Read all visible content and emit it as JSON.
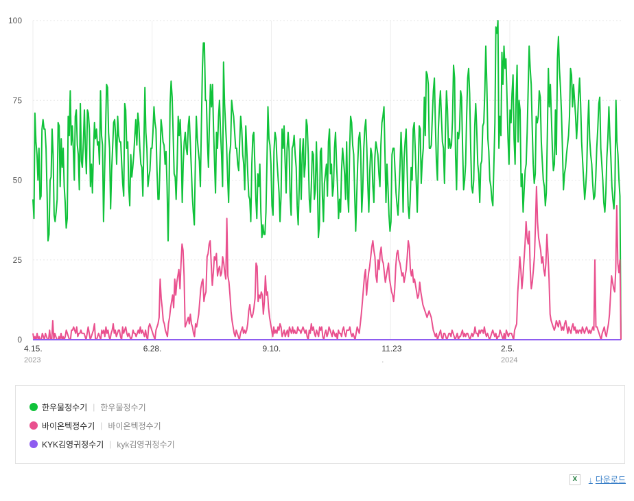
{
  "chart_data": {
    "type": "line",
    "ylim": [
      0,
      100
    ],
    "y_ticks": [
      0,
      25,
      50,
      75,
      100
    ],
    "grid": true,
    "x_ticks": [
      {
        "date": "2023-04-15",
        "label": "4.15.",
        "sub": "2023"
      },
      {
        "date": "2023-06-28",
        "label": "6.28.",
        "sub": ""
      },
      {
        "date": "2023-09-10",
        "label": "9.10.",
        "sub": ""
      },
      {
        "date": "2023-11-23",
        "label": "11.23",
        "sub": "."
      },
      {
        "date": "2024-02-05",
        "label": "2.5.",
        "sub": "2024"
      }
    ],
    "x_start": "2023-04-15",
    "x_end": "2024-04-14",
    "series": [
      {
        "name": "한우물정수기",
        "color": "#10c23a",
        "values": [
          44,
          38,
          71,
          62,
          58,
          50,
          60,
          44,
          45,
          66,
          69,
          66,
          66,
          60,
          46,
          31,
          33,
          50,
          51,
          66,
          58,
          39,
          37,
          40,
          44,
          68,
          67,
          48,
          63,
          54,
          60,
          48,
          43,
          35,
          38,
          70,
          64,
          78,
          61,
          67,
          60,
          50,
          70,
          72,
          61,
          58,
          47,
          74,
          56,
          54,
          62,
          72,
          60,
          52,
          72,
          71,
          66,
          48,
          55,
          46,
          59,
          68,
          63,
          66,
          61,
          62,
          55,
          78,
          64,
          61,
          37,
          52,
          65,
          80,
          79,
          65,
          60,
          41,
          53,
          60,
          68,
          69,
          64,
          55,
          70,
          64,
          62,
          62,
          55,
          49,
          45,
          74,
          72,
          60,
          62,
          48,
          42,
          58,
          51,
          54,
          58,
          64,
          69,
          61,
          71,
          68,
          60,
          55,
          54,
          45,
          61,
          79,
          65,
          60,
          48,
          51,
          53,
          60,
          60,
          65,
          73,
          68,
          66,
          53,
          44,
          44,
          55,
          69,
          66,
          62,
          61,
          55,
          59,
          48,
          31,
          47,
          74,
          81,
          76,
          65,
          52,
          51,
          44,
          55,
          70,
          64,
          69,
          60,
          43,
          55,
          62,
          65,
          60,
          58,
          67,
          70,
          62,
          54,
          45,
          40,
          36,
          55,
          70,
          63,
          59,
          56,
          48,
          67,
          85,
          93,
          93,
          75,
          75,
          62,
          54,
          68,
          80,
          73,
          80,
          67,
          56,
          46,
          65,
          60,
          70,
          75,
          65,
          58,
          48,
          87,
          74,
          67,
          61,
          51,
          43,
          58,
          61,
          75,
          72,
          70,
          65,
          60,
          60,
          55,
          53,
          62,
          70,
          66,
          58,
          55,
          47,
          67,
          60,
          52,
          45,
          44,
          37,
          55,
          64,
          65,
          55,
          44,
          38,
          52,
          48,
          55,
          40,
          32,
          36,
          33,
          33,
          40,
          55,
          73,
          63,
          61,
          55,
          42,
          39,
          59,
          65,
          63,
          56,
          51,
          46,
          37,
          45,
          66,
          60,
          67,
          56,
          46,
          60,
          65,
          59,
          45,
          39,
          60,
          61,
          64,
          58,
          54,
          42,
          36,
          48,
          63,
          44,
          58,
          63,
          51,
          55,
          69,
          67,
          58,
          44,
          40,
          48,
          59,
          58,
          44,
          47,
          62,
          51,
          32,
          36,
          59,
          60,
          45,
          37,
          49,
          52,
          55,
          45,
          62,
          66,
          52,
          55,
          45,
          48,
          60,
          65,
          55,
          48,
          38,
          44,
          40,
          53,
          60,
          56,
          52,
          44,
          62,
          46,
          40,
          60,
          70,
          68,
          61,
          58,
          46,
          34,
          45,
          55,
          63,
          65,
          59,
          40,
          47,
          60,
          66,
          69,
          60,
          49,
          40,
          53,
          60,
          58,
          48,
          43,
          57,
          62,
          60,
          58,
          52,
          48,
          61,
          68,
          70,
          73,
          59,
          43,
          55,
          48,
          39,
          34,
          37,
          58,
          60,
          60,
          53,
          46,
          42,
          39,
          47,
          55,
          65,
          56,
          40,
          57,
          62,
          66,
          53,
          42,
          38,
          44,
          54,
          50,
          66,
          68,
          60,
          50,
          40,
          52,
          67,
          66,
          49,
          56,
          60,
          76,
          64,
          84,
          83,
          80,
          60,
          60,
          61,
          70,
          78,
          82,
          68,
          56,
          50,
          66,
          73,
          78,
          70,
          62,
          60,
          49,
          65,
          78,
          72,
          60,
          63,
          60,
          61,
          69,
          86,
          82,
          58,
          47,
          65,
          63,
          66,
          78,
          76,
          60,
          47,
          50,
          55,
          70,
          82,
          85,
          77,
          60,
          48,
          46,
          50,
          67,
          74,
          66,
          55,
          52,
          43,
          55,
          56,
          67,
          68,
          78,
          92,
          80,
          63,
          59,
          50,
          48,
          44,
          42,
          55,
          68,
          98,
          96,
          100,
          60,
          70,
          64,
          90,
          80,
          92,
          85,
          88,
          76,
          63,
          55,
          72,
          68,
          77,
          83,
          63,
          55,
          75,
          86,
          62,
          75,
          72,
          48,
          52,
          40,
          47,
          53,
          55,
          65,
          79,
          92,
          85,
          80,
          67,
          55,
          49,
          52,
          70,
          68,
          70,
          78,
          76,
          62,
          56,
          50,
          48,
          42,
          46,
          64,
          85,
          73,
          80,
          70,
          60,
          53,
          55,
          72,
          58,
          88,
          95,
          85,
          79,
          71,
          60,
          47,
          52,
          54,
          58,
          61,
          64,
          70,
          85,
          83,
          73,
          80,
          75,
          70,
          63,
          69,
          77,
          82,
          74,
          62,
          56,
          50,
          44,
          48,
          53,
          66,
          75,
          63,
          58,
          55,
          49,
          44,
          45,
          51,
          60,
          66,
          74,
          76,
          60,
          55,
          50,
          43,
          40,
          46,
          57,
          63,
          73,
          64,
          57,
          48,
          44,
          41,
          47,
          75,
          62,
          58,
          50,
          45,
          0
        ]
      },
      {
        "name": "바이온텍정수기",
        "color": "#e9508e",
        "values": [
          2,
          0,
          1,
          0,
          2,
          0,
          1,
          0,
          0,
          2,
          1,
          0,
          2,
          1,
          0,
          0,
          3,
          0,
          0,
          6,
          0,
          2,
          1,
          0,
          0,
          1,
          0,
          2,
          0,
          1,
          0,
          1,
          3,
          2,
          1,
          0,
          0,
          3,
          3,
          4,
          3,
          2,
          4,
          1,
          2,
          2,
          3,
          2,
          2,
          2,
          1,
          0,
          2,
          4,
          2,
          0,
          1,
          2,
          3,
          5,
          0,
          0,
          1,
          2,
          1,
          0,
          3,
          2,
          3,
          1,
          4,
          2,
          3,
          1,
          0,
          2,
          3,
          5,
          2,
          3,
          1,
          2,
          3,
          3,
          1,
          0,
          4,
          2,
          3,
          4,
          2,
          1,
          2,
          1,
          0,
          1,
          3,
          2,
          2,
          1,
          2,
          3,
          2,
          4,
          2,
          3,
          2,
          1,
          3,
          1,
          0,
          4,
          5,
          4,
          3,
          2,
          1,
          0,
          3,
          4,
          5,
          7,
          19,
          13,
          10,
          6,
          5,
          3,
          2,
          1,
          5,
          7,
          10,
          12,
          14,
          10,
          19,
          14,
          18,
          20,
          22,
          16,
          24,
          30,
          28,
          20,
          4,
          5,
          6,
          7,
          5,
          8,
          5,
          4,
          2,
          1,
          5,
          4,
          6,
          8,
          12,
          16,
          18,
          19,
          12,
          14,
          15,
          26,
          27,
          30,
          31,
          24,
          17,
          21,
          26,
          25,
          27,
          20,
          22,
          23,
          20,
          21,
          26,
          24,
          21,
          19,
          38,
          20,
          18,
          14,
          9,
          6,
          4,
          2,
          1,
          3,
          2,
          1,
          0,
          2,
          3,
          4,
          2,
          3,
          2,
          3,
          5,
          9,
          11,
          8,
          7,
          8,
          10,
          13,
          24,
          23,
          12,
          14,
          13,
          15,
          14,
          8,
          12,
          20,
          14,
          15,
          10,
          7,
          5,
          3,
          1,
          4,
          2,
          3,
          2,
          4,
          3,
          5,
          4,
          1,
          2,
          3,
          1,
          2,
          3,
          1,
          4,
          3,
          2,
          4,
          2,
          3,
          2,
          2,
          4,
          3,
          3,
          2,
          3,
          4,
          3,
          2,
          3,
          1,
          0,
          3,
          2,
          5,
          3,
          4,
          2,
          1,
          3,
          2,
          1,
          4,
          3,
          4,
          1,
          0,
          2,
          3,
          1,
          2,
          4,
          3,
          2,
          1,
          3,
          2,
          1,
          2,
          0,
          3,
          2,
          2,
          1,
          3,
          4,
          2,
          1,
          3,
          3,
          3,
          4,
          2,
          1,
          2,
          1,
          0,
          2,
          4,
          3,
          2,
          5,
          8,
          12,
          16,
          20,
          22,
          14,
          18,
          21,
          23,
          26,
          29,
          31,
          28,
          26,
          20,
          18,
          25,
          22,
          27,
          29,
          25,
          24,
          21,
          18,
          20,
          22,
          24,
          19,
          17,
          15,
          14,
          12,
          16,
          23,
          27,
          28,
          25,
          24,
          22,
          20,
          21,
          18,
          20,
          22,
          26,
          31,
          29,
          22,
          20,
          22,
          18,
          19,
          17,
          15,
          13,
          14,
          18,
          15,
          13,
          11,
          10,
          9,
          8,
          7,
          8,
          9,
          8,
          7,
          5,
          3,
          2,
          1,
          2,
          0,
          1,
          2,
          3,
          1,
          0,
          2,
          2,
          1,
          0,
          1,
          2,
          2,
          1,
          3,
          2,
          1,
          0,
          1,
          2,
          0,
          1,
          1,
          2,
          3,
          1,
          2,
          1,
          2,
          2,
          1,
          0,
          1,
          2,
          1,
          2,
          4,
          2,
          2,
          1,
          3,
          2,
          3,
          3,
          2,
          4,
          2,
          1,
          2,
          1,
          0,
          1,
          2,
          3,
          2,
          1,
          2,
          0,
          1,
          1,
          3,
          2,
          1,
          0,
          2,
          0,
          3,
          2,
          1,
          2,
          2,
          2,
          1,
          0,
          3,
          4,
          5,
          15,
          20,
          26,
          22,
          16,
          20,
          25,
          30,
          37,
          32,
          30,
          34,
          22,
          16,
          18,
          22,
          26,
          36,
          48,
          37,
          32,
          30,
          28,
          24,
          26,
          22,
          20,
          24,
          33,
          27,
          19,
          8,
          6,
          5,
          4,
          3,
          4,
          6,
          5,
          4,
          6,
          5,
          3,
          4,
          3,
          5,
          6,
          4,
          2,
          4,
          3,
          2,
          4,
          5,
          3,
          4,
          2,
          3,
          2,
          3,
          3,
          2,
          4,
          3,
          2,
          3,
          4,
          3,
          2,
          3,
          2,
          3,
          4,
          3,
          25,
          4,
          4,
          3,
          2,
          1,
          0,
          2,
          3,
          4,
          2,
          1,
          3,
          5,
          8,
          14,
          20,
          18,
          16,
          15,
          22,
          42,
          24,
          21,
          25,
          0
        ]
      },
      {
        "name": "KYK김영귀정수기",
        "color": "#8e5cf0",
        "values": [
          0,
          0
        ]
      }
    ]
  },
  "legend": [
    {
      "name": "한우물정수기",
      "desc": "한우물정수기",
      "color": "#10c23a"
    },
    {
      "name": "바이온텍정수기",
      "desc": "바이온텍정수기",
      "color": "#e9508e"
    },
    {
      "name": "KYK김영귀정수기",
      "desc": "kyk김영귀정수기",
      "color": "#8e5cf0"
    }
  ],
  "footer": {
    "download_label": "다운로드"
  },
  "icons": {
    "excel": "excel-icon",
    "download": "download-arrow-icon"
  }
}
